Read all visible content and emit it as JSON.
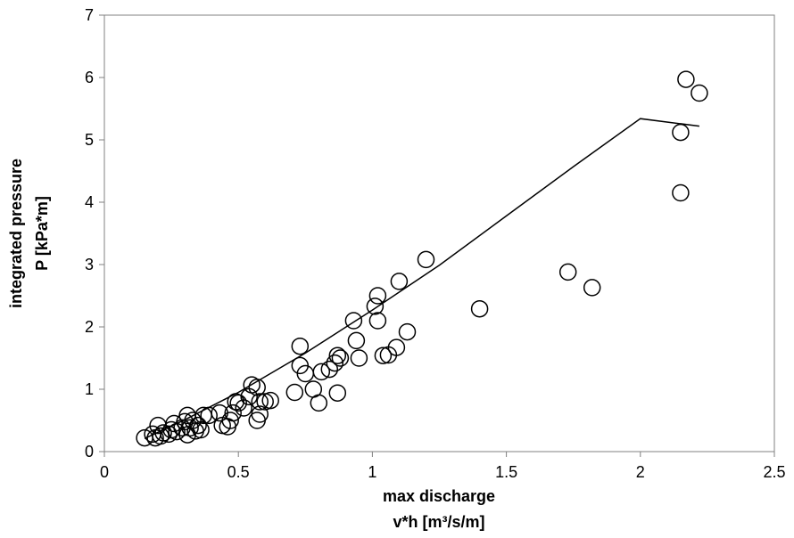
{
  "chart_data": {
    "type": "scatter",
    "xlabel": [
      "max discharge",
      "v*h [m³/s/m]"
    ],
    "ylabel": [
      "integrated pressure",
      "P [kPa*m]"
    ],
    "xlim": [
      0,
      2.5
    ],
    "ylim": [
      0,
      7
    ],
    "x_ticks": [
      "0",
      "0.5",
      "1",
      "1.5",
      "2",
      "2.5"
    ],
    "y_ticks": [
      "0",
      "1",
      "2",
      "3",
      "4",
      "5",
      "6",
      "7"
    ],
    "grid": false,
    "legend": "none",
    "marker": "open-circle",
    "series": [
      {
        "points": [
          [
            0.15,
            0.22
          ],
          [
            0.18,
            0.28
          ],
          [
            0.19,
            0.22
          ],
          [
            0.2,
            0.42
          ],
          [
            0.21,
            0.25
          ],
          [
            0.22,
            0.3
          ],
          [
            0.24,
            0.28
          ],
          [
            0.25,
            0.35
          ],
          [
            0.26,
            0.45
          ],
          [
            0.27,
            0.32
          ],
          [
            0.29,
            0.38
          ],
          [
            0.3,
            0.48
          ],
          [
            0.31,
            0.58
          ],
          [
            0.31,
            0.27
          ],
          [
            0.32,
            0.38
          ],
          [
            0.33,
            0.5
          ],
          [
            0.34,
            0.33
          ],
          [
            0.35,
            0.42
          ],
          [
            0.36,
            0.35
          ],
          [
            0.37,
            0.58
          ],
          [
            0.39,
            0.58
          ],
          [
            0.43,
            0.62
          ],
          [
            0.44,
            0.42
          ],
          [
            0.46,
            0.4
          ],
          [
            0.47,
            0.5
          ],
          [
            0.48,
            0.62
          ],
          [
            0.49,
            0.8
          ],
          [
            0.5,
            0.78
          ],
          [
            0.52,
            0.7
          ],
          [
            0.54,
            0.88
          ],
          [
            0.55,
            1.07
          ],
          [
            0.57,
            1.03
          ],
          [
            0.57,
            0.5
          ],
          [
            0.58,
            0.6
          ],
          [
            0.58,
            0.8
          ],
          [
            0.6,
            0.8
          ],
          [
            0.62,
            0.82
          ],
          [
            0.71,
            0.95
          ],
          [
            0.73,
            1.69
          ],
          [
            0.73,
            1.38
          ],
          [
            0.75,
            1.25
          ],
          [
            0.78,
            1.0
          ],
          [
            0.8,
            0.78
          ],
          [
            0.81,
            1.28
          ],
          [
            0.84,
            1.32
          ],
          [
            0.86,
            1.42
          ],
          [
            0.87,
            1.54
          ],
          [
            0.88,
            1.5
          ],
          [
            0.87,
            0.94
          ],
          [
            0.93,
            2.1
          ],
          [
            0.94,
            1.78
          ],
          [
            0.95,
            1.5
          ],
          [
            1.01,
            2.33
          ],
          [
            1.02,
            2.5
          ],
          [
            1.02,
            2.1
          ],
          [
            1.04,
            1.54
          ],
          [
            1.06,
            1.55
          ],
          [
            1.09,
            1.67
          ],
          [
            1.1,
            2.73
          ],
          [
            1.13,
            1.92
          ],
          [
            1.2,
            3.08
          ],
          [
            1.4,
            2.29
          ],
          [
            1.73,
            2.88
          ],
          [
            1.82,
            2.63
          ],
          [
            2.15,
            5.12
          ],
          [
            2.15,
            4.15
          ],
          [
            2.17,
            5.97
          ],
          [
            2.22,
            5.75
          ]
        ]
      }
    ],
    "trendline": {
      "type": "power",
      "points": [
        [
          0.15,
          0.21
        ],
        [
          0.3,
          0.51
        ],
        [
          0.5,
          0.95
        ],
        [
          0.75,
          1.58
        ],
        [
          1.0,
          2.27
        ],
        [
          1.25,
          2.99
        ],
        [
          1.5,
          3.78
        ],
        [
          1.75,
          4.57
        ],
        [
          2.0,
          5.34
        ],
        [
          2.22,
          5.22
        ]
      ]
    }
  }
}
